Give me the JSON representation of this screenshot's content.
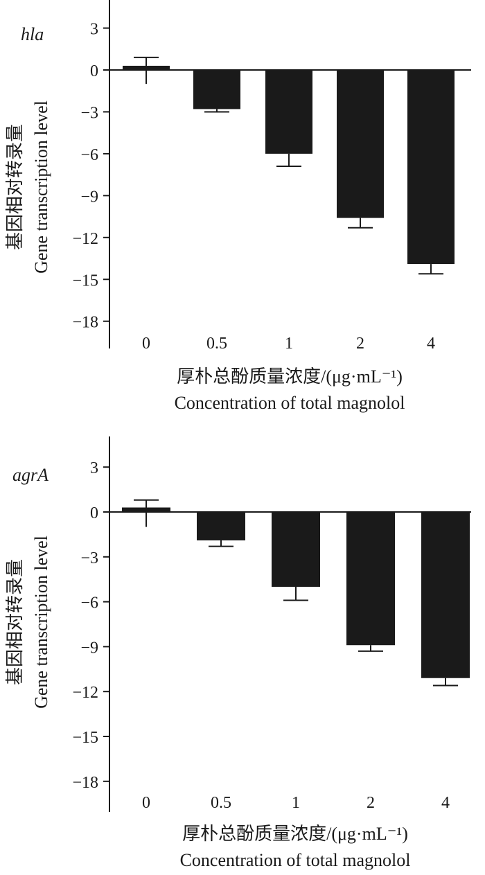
{
  "chart_data": [
    {
      "type": "bar",
      "gene_label": "hla",
      "categories": [
        "0",
        "0.5",
        "1",
        "2",
        "4"
      ],
      "values": [
        0.3,
        -2.8,
        -6.0,
        -10.6,
        -13.9
      ],
      "error_upper": [
        0.9,
        -2.8,
        -6.0,
        -10.6,
        -13.9
      ],
      "error_lower": [
        0.3,
        -3.0,
        -6.9,
        -11.3,
        -14.6
      ],
      "error_bottom_extra": -1.0,
      "ylabel_cn": "基因相对转录量",
      "ylabel_en": "Gene transcription level",
      "xlabel_cn": "厚朴总酚质量浓度/(μg·mL⁻¹)",
      "xlabel_en": "Concentration of total magnolol",
      "yticks": [
        "3",
        "0",
        "−3",
        "−6",
        "−9",
        "−12",
        "−15",
        "−18"
      ],
      "ylim": [
        -19.5,
        5
      ],
      "bar_color": "#1a1a1a"
    },
    {
      "type": "bar",
      "gene_label": "agrA",
      "categories": [
        "0",
        "0.5",
        "1",
        "2",
        "4"
      ],
      "values": [
        0.3,
        -1.9,
        -5.0,
        -8.9,
        -11.1
      ],
      "error_upper": [
        0.8,
        -1.9,
        -5.0,
        -8.9,
        -11.1
      ],
      "error_lower": [
        0.3,
        -2.3,
        -5.9,
        -9.3,
        -11.6
      ],
      "error_bottom_extra": -1.0,
      "ylabel_cn": "基因相对转录量",
      "ylabel_en": "Gene transcription level",
      "xlabel_cn": "厚朴总酚质量浓度/(μg·mL⁻¹)",
      "xlabel_en": "Concentration of total magnolol",
      "yticks": [
        "3",
        "0",
        "−3",
        "−6",
        "−9",
        "−12",
        "−15",
        "−18"
      ],
      "ylim": [
        -19.5,
        5
      ],
      "bar_color": "#1a1a1a"
    }
  ]
}
